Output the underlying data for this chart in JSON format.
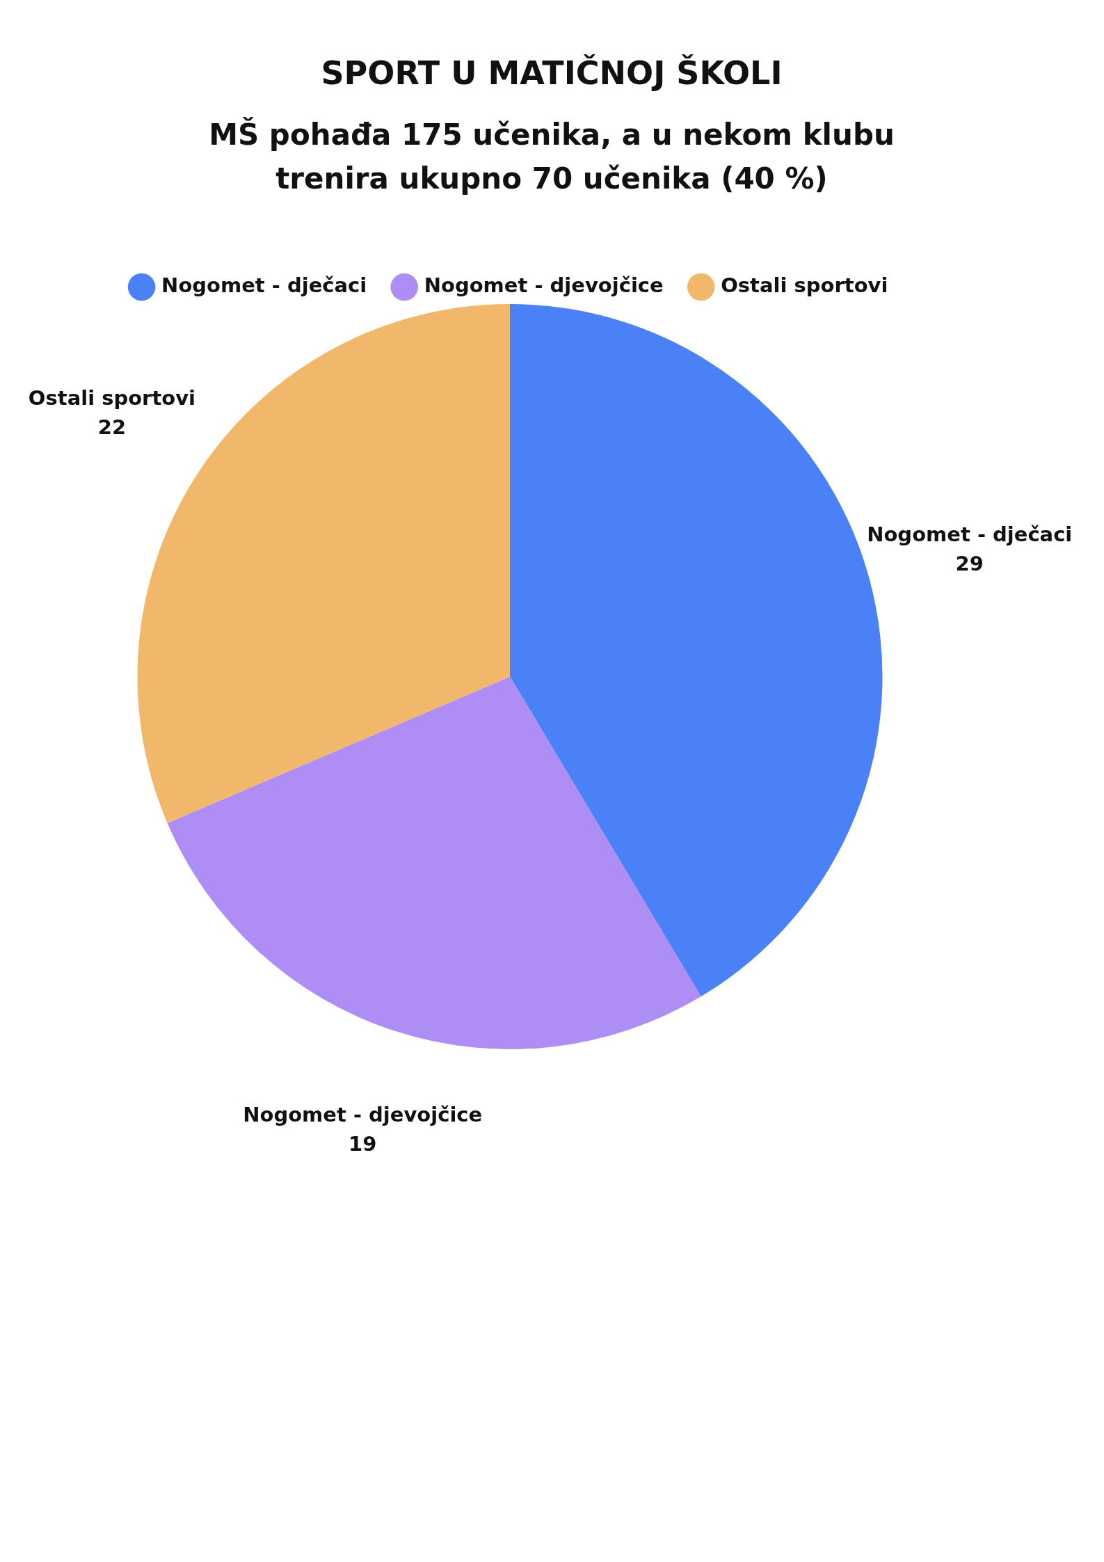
{
  "chart_data": {
    "type": "pie",
    "title": "SPORT U MATIČNOJ ŠKOLI",
    "subtitle": "MŠ pohađa 175 učenika, a u nekom klubu trenira ukupno 70 učenika (40 %)",
    "categories": [
      "Nogomet - dječaci",
      "Nogomet - djevojčice",
      "Ostali sportovi"
    ],
    "values": [
      29,
      19,
      22
    ],
    "colors": [
      "#4a81f7",
      "#ae8ef5",
      "#f1b86c"
    ],
    "data_labels": true,
    "legend": "top"
  }
}
